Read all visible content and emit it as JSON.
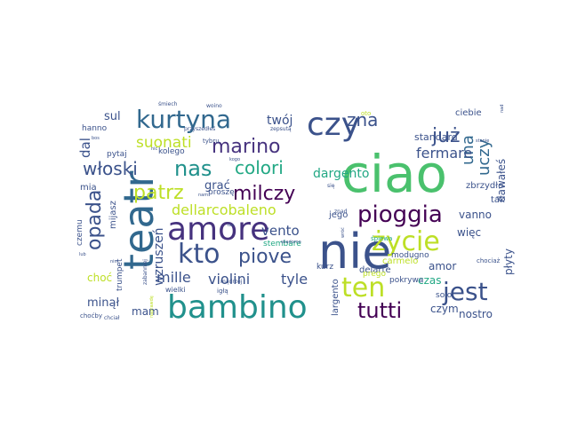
{
  "image": {
    "kind": "word cloud",
    "background": "#ffffff",
    "palette": [
      "#440154",
      "#46327e",
      "#365c8d",
      "#277f8e",
      "#1fa187",
      "#4ac16d",
      "#a0da39",
      "#fde725"
    ]
  },
  "words": [
    {
      "text": "ciao",
      "color": "#4ac16d"
    },
    {
      "text": "nie",
      "color": "#3b528b"
    },
    {
      "text": "teatr",
      "color": "#31688e"
    },
    {
      "text": "amore",
      "color": "#46327e"
    },
    {
      "text": "bambino",
      "color": "#21918c"
    },
    {
      "text": "czy",
      "color": "#3b528b"
    },
    {
      "text": "kurtyna",
      "color": "#31688e"
    },
    {
      "text": "kto",
      "color": "#3b528b"
    },
    {
      "text": "jest",
      "color": "#3b528b"
    },
    {
      "text": "ten",
      "color": "#bddf26"
    },
    {
      "text": "życie",
      "color": "#bddf26"
    },
    {
      "text": "pioggia",
      "color": "#440154"
    },
    {
      "text": "tutti",
      "color": "#440154"
    },
    {
      "text": "nas",
      "color": "#21918c"
    },
    {
      "text": "marino",
      "color": "#46327e"
    },
    {
      "text": "milczy",
      "color": "#440154"
    },
    {
      "text": "patrz",
      "color": "#bddf26"
    },
    {
      "text": "już",
      "color": "#3b528b"
    },
    {
      "text": "zna",
      "color": "#3b528b"
    },
    {
      "text": "opada",
      "color": "#3b528b"
    },
    {
      "text": "piove",
      "color": "#3b528b"
    },
    {
      "text": "colori",
      "color": "#22a884"
    },
    {
      "text": "włoski",
      "color": "#3b528b"
    },
    {
      "text": "una",
      "color": "#31688e"
    },
    {
      "text": "uczy",
      "color": "#31688e"
    },
    {
      "text": "suonati",
      "color": "#bddf26"
    },
    {
      "text": "fermare",
      "color": "#3b528b"
    },
    {
      "text": "dellarcobaleno",
      "color": "#bddf26"
    },
    {
      "text": "vento",
      "color": "#3b528b"
    },
    {
      "text": "mille",
      "color": "#3b528b"
    },
    {
      "text": "violini",
      "color": "#3b528b"
    },
    {
      "text": "tyle",
      "color": "#3b528b"
    },
    {
      "text": "dargento",
      "color": "#22a884"
    },
    {
      "text": "twój",
      "color": "#3b528b"
    },
    {
      "text": "sul",
      "color": "#3b528b"
    },
    {
      "text": "dal",
      "color": "#3b528b"
    },
    {
      "text": "grać",
      "color": "#3b528b"
    },
    {
      "text": "dawałeś",
      "color": "#3b528b"
    },
    {
      "text": "vanno",
      "color": "#3b528b"
    },
    {
      "text": "więc",
      "color": "#3b528b"
    },
    {
      "text": "wzruszeń",
      "color": "#3b528b"
    },
    {
      "text": "mam",
      "color": "#3b528b"
    },
    {
      "text": "minął",
      "color": "#3b528b"
    },
    {
      "text": "choć",
      "color": "#bddf26"
    },
    {
      "text": "czas",
      "color": "#22a884"
    },
    {
      "text": "amor",
      "color": "#3b528b"
    },
    {
      "text": "czym",
      "color": "#3b528b"
    },
    {
      "text": "nostro",
      "color": "#3b528b"
    },
    {
      "text": "płyty",
      "color": "#3b528b"
    },
    {
      "text": "standard",
      "color": "#3b528b"
    },
    {
      "text": "ciebie",
      "color": "#3b528b"
    },
    {
      "text": "mia",
      "color": "#3b528b"
    },
    {
      "text": "mijasz",
      "color": "#3b528b"
    },
    {
      "text": "jego",
      "color": "#3b528b"
    },
    {
      "text": "tak",
      "color": "#3b528b"
    },
    {
      "text": "zbrzydło",
      "color": "#3b528b"
    },
    {
      "text": "delarte",
      "color": "#3b528b"
    },
    {
      "text": "carmelo",
      "color": "#bddf26"
    },
    {
      "text": "largento",
      "color": "#3b528b"
    },
    {
      "text": "solo",
      "color": "#3b528b"
    },
    {
      "text": "pokrywa",
      "color": "#3b528b"
    },
    {
      "text": "kurz",
      "color": "#3b528b"
    },
    {
      "text": "prego",
      "color": "#bddf26"
    },
    {
      "text": "modugno",
      "color": "#3b528b"
    },
    {
      "text": "stembare",
      "color": "#22a884"
    },
    {
      "text": "trumpet",
      "color": "#3b528b"
    },
    {
      "text": "czemu",
      "color": "#3b528b"
    },
    {
      "text": "kolego",
      "color": "#3b528b"
    },
    {
      "text": "pytaj",
      "color": "#3b528b"
    },
    {
      "text": "hanno",
      "color": "#3b528b"
    },
    {
      "text": "proszę",
      "color": "#3b528b"
    },
    {
      "text": "wielki",
      "color": "#3b528b"
    },
    {
      "text": "igłą",
      "color": "#3b528b"
    },
    {
      "text": "śpiewa",
      "color": "#22a884"
    },
    {
      "text": "chociaż",
      "color": "#3b528b"
    },
    {
      "text": "choćby",
      "color": "#3b528b"
    },
    {
      "text": "chciał",
      "color": "#3b528b"
    },
    {
      "text": "mądrzej",
      "color": "#3b528b"
    },
    {
      "text": "zabanniej",
      "color": "#3b528b"
    },
    {
      "text": "przyszedłeś",
      "color": "#3b528b"
    },
    {
      "text": "tybru",
      "color": "#3b528b"
    },
    {
      "text": "zepsutą",
      "color": "#3b528b"
    },
    {
      "text": "woino",
      "color": "#3b528b"
    },
    {
      "text": "śmiech",
      "color": "#3b528b"
    },
    {
      "text": "oto",
      "color": "#bddf26"
    },
    {
      "text": "znad",
      "color": "#3b528b"
    },
    {
      "text": "się",
      "color": "#3b528b"
    },
    {
      "text": "wiadomo",
      "color": "#3b528b"
    },
    {
      "text": "wróć",
      "color": "#3b528b"
    },
    {
      "text": "stanie",
      "color": "#3b528b"
    },
    {
      "text": "nad",
      "color": "#3b528b"
    },
    {
      "text": "bos",
      "color": "#3b528b"
    },
    {
      "text": "nic",
      "color": "#3b528b"
    },
    {
      "text": "kogo",
      "color": "#3b528b"
    },
    {
      "text": "nam",
      "color": "#3b528b"
    },
    {
      "text": "łza",
      "color": "#3b528b"
    },
    {
      "text": "lub",
      "color": "#3b528b"
    },
    {
      "text": "naprawdę",
      "color": "#bddf26"
    },
    {
      "text": "nim",
      "color": "#3b528b"
    }
  ]
}
